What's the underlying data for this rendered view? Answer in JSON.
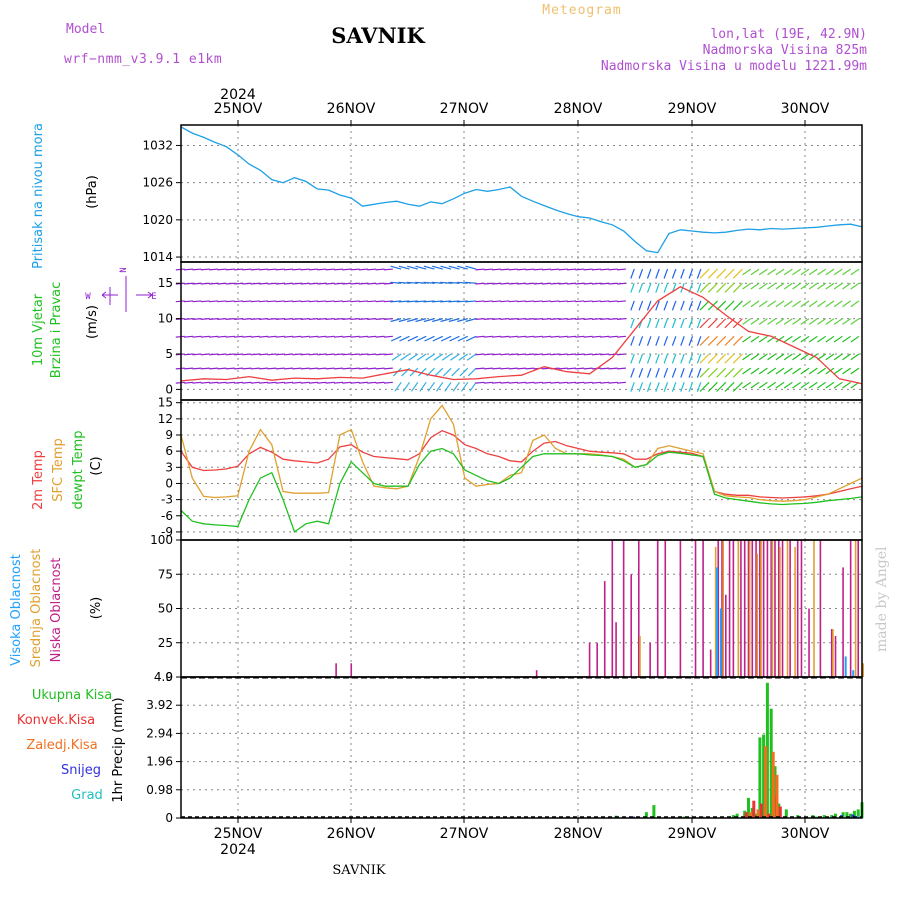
{
  "header": {
    "model_label": "Model",
    "model_name": "wrf−nmm_v3.9.1  e1km",
    "title": "SAVNIK",
    "subtitle": "Meteogram",
    "coords": "lon,lat (19E, 42.9N)",
    "elev": "Nadmorska Visina 825m",
    "elev_model": "Nadmorska Visina u modelu 1221.99m",
    "year_top": "2024",
    "year_bottom": "2024",
    "footer": "SAVNIK",
    "watermark": "made by Angel"
  },
  "colors": {
    "pressure": "#1ea0e6",
    "temp2m": "#ee4040",
    "sfc": "#e0a030",
    "dew": "#20c020",
    "cloud_high": "#20a0ff",
    "cloud_mid": "#e0a030",
    "cloud_low": "#c0208a",
    "rain_total": "#20c020",
    "rain_conv": "#ee3030",
    "rain_frz": "#f07020",
    "snow": "#3030dd",
    "grad": "#20c0c0",
    "wind_purple": "#9020d0"
  },
  "chart_data": [
    {
      "type": "line",
      "panel": "pressure",
      "ylabel_line1": "Pritisak na nivou mora",
      "ylabel_unit": "(hPa)",
      "x_days": [
        "25NOV",
        "26NOV",
        "27NOV",
        "28NOV",
        "29NOV",
        "30NOV"
      ],
      "yticks": [
        1014,
        1020,
        1026,
        1032
      ],
      "ylim": [
        1013.2,
        1035.3
      ],
      "series": [
        {
          "x": [
            0,
            3,
            6,
            9,
            12,
            15,
            18,
            21,
            24,
            27,
            30,
            33,
            36,
            39,
            42,
            45,
            48,
            51,
            54,
            57,
            60,
            63,
            66,
            69,
            72,
            75,
            78,
            81,
            84,
            87,
            90,
            93,
            96,
            99,
            102,
            105,
            108,
            111,
            114,
            117,
            120,
            123,
            126,
            129,
            132,
            135,
            138,
            141,
            144,
            147,
            150,
            153,
            156,
            159,
            162,
            165,
            168,
            171,
            174,
            177,
            180
          ],
          "values": [
            1035,
            1034,
            1033.3,
            1032.5,
            1031.8,
            1030.5,
            1029,
            1028,
            1026.5,
            1026,
            1026.8,
            1026.2,
            1025,
            1024.8,
            1024,
            1023.5,
            1022.2,
            1022.5,
            1022.8,
            1023,
            1022.5,
            1022.2,
            1022.9,
            1022.6,
            1023.4,
            1024.3,
            1024.9,
            1024.6,
            1024.9,
            1025.3,
            1023.8,
            1023,
            1022.3,
            1021.6,
            1021,
            1020.5,
            1020.3,
            1019.7,
            1019.2,
            1018.2,
            1016.5,
            1015,
            1014.7,
            1017.8,
            1018.4,
            1018.2,
            1018,
            1017.9,
            1018,
            1018.3,
            1018.5,
            1018.4,
            1018.6,
            1018.5,
            1018.6,
            1018.7,
            1018.8,
            1019,
            1019.2,
            1019.3,
            1018.9
          ]
        }
      ]
    },
    {
      "type": "line",
      "panel": "wind",
      "ylabel_line1": "10m Vjetar",
      "ylabel_line2": "Brzina i Pravac",
      "ylabel_unit": "(m/s)",
      "compass": "N",
      "compass_w": "W",
      "compass_e": "E",
      "yticks": [
        0,
        5,
        10,
        15
      ],
      "ylim": [
        -1.5,
        18
      ],
      "series": [
        {
          "name": "speed",
          "x": [
            0,
            6,
            12,
            18,
            24,
            30,
            36,
            42,
            48,
            54,
            60,
            66,
            72,
            78,
            84,
            90,
            96,
            102,
            108,
            114,
            120,
            126,
            132,
            138,
            144,
            150,
            156,
            162,
            168,
            174,
            180
          ],
          "values": [
            1.2,
            1.5,
            1.4,
            1.8,
            1.3,
            1.6,
            1.5,
            1.7,
            1.6,
            2.2,
            2.8,
            2.0,
            1.4,
            1.5,
            1.8,
            2.0,
            3.2,
            2.5,
            2.2,
            4.5,
            8.5,
            12.5,
            14.5,
            13.0,
            10.5,
            8.2,
            7.5,
            6.0,
            4.5,
            1.5,
            0.8
          ]
        }
      ]
    },
    {
      "type": "line",
      "panel": "temperature",
      "ylabel_line1": "2m Temp",
      "ylabel_line2": "SFC Temp",
      "ylabel_line3": "dewpt Temp",
      "ylabel_unit": "(C)",
      "yticks": [
        -9,
        -6,
        -3,
        0,
        3,
        6,
        9,
        12,
        15
      ],
      "ylim": [
        -10.5,
        15.5
      ],
      "series": [
        {
          "name": "2m Temp",
          "x": [
            0,
            3,
            6,
            9,
            12,
            15,
            18,
            21,
            24,
            27,
            30,
            33,
            36,
            39,
            42,
            45,
            48,
            51,
            54,
            57,
            60,
            63,
            66,
            69,
            72,
            75,
            78,
            81,
            84,
            87,
            90,
            93,
            96,
            99,
            102,
            105,
            108,
            111,
            114,
            117,
            120,
            123,
            126,
            129,
            132,
            135,
            138,
            141,
            144,
            147,
            150,
            153,
            156,
            159,
            162,
            165,
            168,
            171,
            174,
            177,
            180
          ],
          "values": [
            6,
            3,
            2.4,
            2.5,
            2.7,
            3.2,
            5.5,
            6.7,
            5.8,
            4.5,
            4.2,
            4,
            3.8,
            4.5,
            6.8,
            7.2,
            5.8,
            5,
            4.8,
            4.6,
            4.4,
            5.5,
            8.5,
            9.8,
            9,
            7.2,
            6.5,
            5.5,
            5,
            4.2,
            4,
            6,
            7.5,
            7.8,
            7,
            6.5,
            6,
            5.8,
            5.7,
            5.5,
            4.5,
            4.5,
            5.5,
            6,
            5.8,
            5.6,
            5,
            -1.5,
            -2,
            -2.2,
            -2.2,
            -2.5,
            -2.6,
            -2.7,
            -2.6,
            -2.5,
            -2.3,
            -2,
            -1.5,
            -1,
            -0.5
          ]
        },
        {
          "name": "SFC Temp",
          "x": [
            0,
            3,
            6,
            9,
            12,
            15,
            18,
            21,
            24,
            27,
            30,
            33,
            36,
            39,
            42,
            45,
            48,
            51,
            54,
            57,
            60,
            63,
            66,
            69,
            72,
            75,
            78,
            81,
            84,
            87,
            90,
            93,
            96,
            99,
            102,
            105,
            108,
            111,
            114,
            117,
            120,
            123,
            126,
            129,
            132,
            135,
            138,
            141,
            144,
            147,
            150,
            153,
            156,
            159,
            162,
            165,
            168,
            171,
            174,
            177,
            180
          ],
          "values": [
            9,
            1,
            -2.4,
            -2.6,
            -2.5,
            -2.3,
            6,
            10,
            7.2,
            -1.5,
            -1.8,
            -1.8,
            -1.8,
            -1.7,
            9,
            10,
            4,
            -0.5,
            -0.8,
            -1,
            -0.5,
            5,
            12,
            14.5,
            11,
            1,
            -0.5,
            -0.2,
            0,
            1.5,
            2,
            8,
            9,
            6.5,
            5.5,
            5.5,
            5.5,
            5.3,
            5,
            4.5,
            3,
            3.5,
            6.5,
            7,
            6.5,
            6,
            5.5,
            -1.5,
            -2.3,
            -2.5,
            -2.6,
            -3,
            -3.2,
            -3.3,
            -3.2,
            -3,
            -2.5,
            -2,
            -1,
            0,
            1
          ]
        },
        {
          "name": "dewpt Temp",
          "x": [
            0,
            3,
            6,
            9,
            12,
            15,
            18,
            21,
            24,
            27,
            30,
            33,
            36,
            39,
            42,
            45,
            48,
            51,
            54,
            57,
            60,
            63,
            66,
            69,
            72,
            75,
            78,
            81,
            84,
            87,
            90,
            93,
            96,
            99,
            102,
            105,
            108,
            111,
            114,
            117,
            120,
            123,
            126,
            129,
            132,
            135,
            138,
            141,
            144,
            147,
            150,
            153,
            156,
            159,
            162,
            165,
            168,
            171,
            174,
            177,
            180
          ],
          "values": [
            -5,
            -7,
            -7.5,
            -7.7,
            -7.8,
            -8,
            -3,
            1,
            2,
            -3,
            -9,
            -7.5,
            -7,
            -7.5,
            0,
            4,
            2,
            0,
            -0.5,
            -0.5,
            -0.5,
            3.5,
            6,
            6.5,
            5.5,
            2.5,
            1.5,
            0.5,
            0,
            1,
            3,
            5,
            5.5,
            5.5,
            5.5,
            5.5,
            5.3,
            5.2,
            5,
            4.2,
            3,
            3.5,
            5.2,
            5.8,
            5.6,
            5.3,
            5,
            -2,
            -2.7,
            -3,
            -3.3,
            -3.6,
            -3.8,
            -3.9,
            -3.8,
            -3.7,
            -3.5,
            -3.2,
            -3,
            -2.8,
            -2.5
          ]
        }
      ]
    },
    {
      "type": "bar",
      "panel": "cloud",
      "ylabel_line1": "Visoka Oblacnost",
      "ylabel_line2": "Srednja Oblacnost",
      "ylabel_line3": "Niska Oblacnost",
      "ylabel_unit": "(%)",
      "yticks": [
        0,
        25,
        50,
        75,
        100
      ],
      "ylim": [
        0,
        100
      ],
      "series": [
        {
          "name": "Niska Oblacnost",
          "x": [
            41,
            45,
            94,
            108,
            110,
            112,
            114,
            115,
            117,
            119,
            121,
            124,
            126,
            128,
            132,
            136,
            138,
            140,
            142,
            143,
            144,
            145,
            146,
            148,
            149,
            150,
            151,
            152,
            153,
            154,
            155,
            156,
            157,
            158,
            159,
            161,
            163,
            164,
            166,
            169,
            172,
            173,
            175,
            177,
            179
          ],
          "values": [
            10,
            10,
            5,
            25,
            25,
            70,
            100,
            40,
            100,
            75,
            100,
            25,
            100,
            100,
            100,
            100,
            100,
            20,
            100,
            100,
            60,
            100,
            100,
            100,
            100,
            100,
            100,
            100,
            100,
            100,
            100,
            100,
            100,
            100,
            100,
            100,
            100,
            100,
            50,
            100,
            35,
            30,
            80,
            100,
            100
          ]
        },
        {
          "name": "Srednja Oblacnost",
          "x": [
            121,
            141,
            143,
            147,
            150,
            152,
            153,
            156,
            158,
            160,
            162,
            167,
            172,
            178,
            180
          ],
          "values": [
            30,
            95,
            100,
            100,
            100,
            90,
            100,
            100,
            95,
            100,
            95,
            100,
            35,
            100,
            10
          ]
        },
        {
          "name": "Visoka Oblacnost",
          "x": [
            142,
            143,
            176,
            178
          ],
          "values": [
            80,
            50,
            15,
            5
          ]
        }
      ]
    },
    {
      "type": "bar",
      "panel": "precip",
      "ylabel_unit": "1hr Precip (mm)",
      "legend": [
        "Ukupna Kisa",
        "Konvek.Kisa",
        "Zaledj.Kisa",
        "Snijeg",
        "Grad"
      ],
      "yticks": [
        0,
        0.98,
        1.96,
        2.94,
        3.92,
        4.9
      ],
      "ylim": [
        0,
        4.9
      ],
      "series": [
        {
          "name": "Ukupna Kisa",
          "x": [
            115,
            123,
            125,
            133,
            138,
            146,
            147,
            149,
            150,
            151,
            152,
            153,
            154,
            155,
            156,
            157,
            158,
            160,
            163,
            167,
            168,
            170,
            172,
            173,
            175,
            176,
            177,
            178,
            179,
            180
          ],
          "values": [
            0.08,
            0.2,
            0.45,
            0.05,
            0.05,
            0.1,
            0.15,
            0.25,
            0.7,
            0.35,
            0.15,
            2.8,
            2.9,
            4.7,
            3.8,
            1.8,
            0.5,
            0.3,
            0.1,
            0.1,
            0.05,
            0.1,
            0.1,
            0.15,
            0.2,
            0.2,
            0.15,
            0.25,
            0.3,
            0.55
          ]
        },
        {
          "name": "Konvek.Kisa",
          "x": [
            149,
            151,
            153,
            155,
            157,
            158
          ],
          "values": [
            0.2,
            0.6,
            0.5,
            0.15,
            0.8,
            0.4
          ]
        },
        {
          "name": "Zaledj.Kisa",
          "x": [
            150,
            152,
            154,
            156,
            157
          ],
          "values": [
            0.2,
            0.3,
            2.5,
            2.3,
            1.5
          ]
        },
        {
          "name": "Snijeg",
          "x": [
            120,
            175,
            178
          ],
          "values": [
            0.05,
            0.1,
            0.12
          ]
        },
        {
          "name": "Grad",
          "x": [
            172,
            179
          ],
          "values": [
            0.05,
            0.08
          ]
        }
      ]
    }
  ]
}
